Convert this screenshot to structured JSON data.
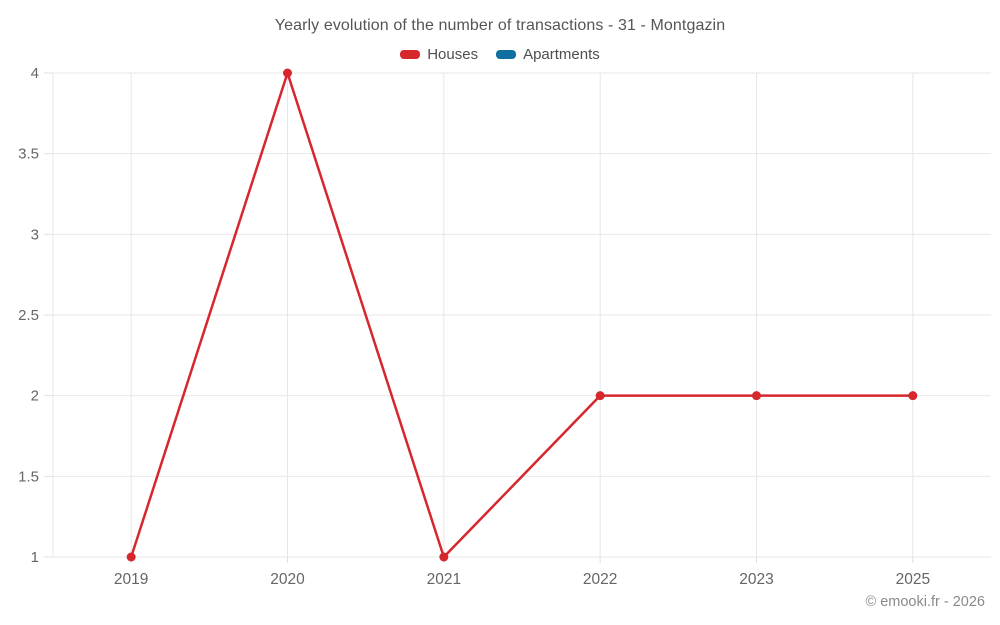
{
  "chart_data": {
    "type": "line",
    "title": "Yearly evolution of the number of transactions - 31 - Montgazin",
    "categories": [
      "2019",
      "2020",
      "2021",
      "2022",
      "2023",
      "2025"
    ],
    "series": [
      {
        "name": "Houses",
        "color": "#d6272c",
        "values": [
          1,
          4,
          1,
          2,
          2,
          2
        ]
      },
      {
        "name": "Apartments",
        "color": "#0f6fa0",
        "values": []
      }
    ],
    "ylim": [
      1,
      4
    ],
    "yticks": [
      1,
      1.5,
      2,
      2.5,
      3,
      3.5,
      4
    ],
    "grid": true,
    "legend_position": "top",
    "grid_color": "#e7e7e7",
    "tick_color": "#e0e0e0",
    "axis_label_color": "#666666"
  },
  "footer": {
    "credit": "© emooki.fr - 2026"
  }
}
